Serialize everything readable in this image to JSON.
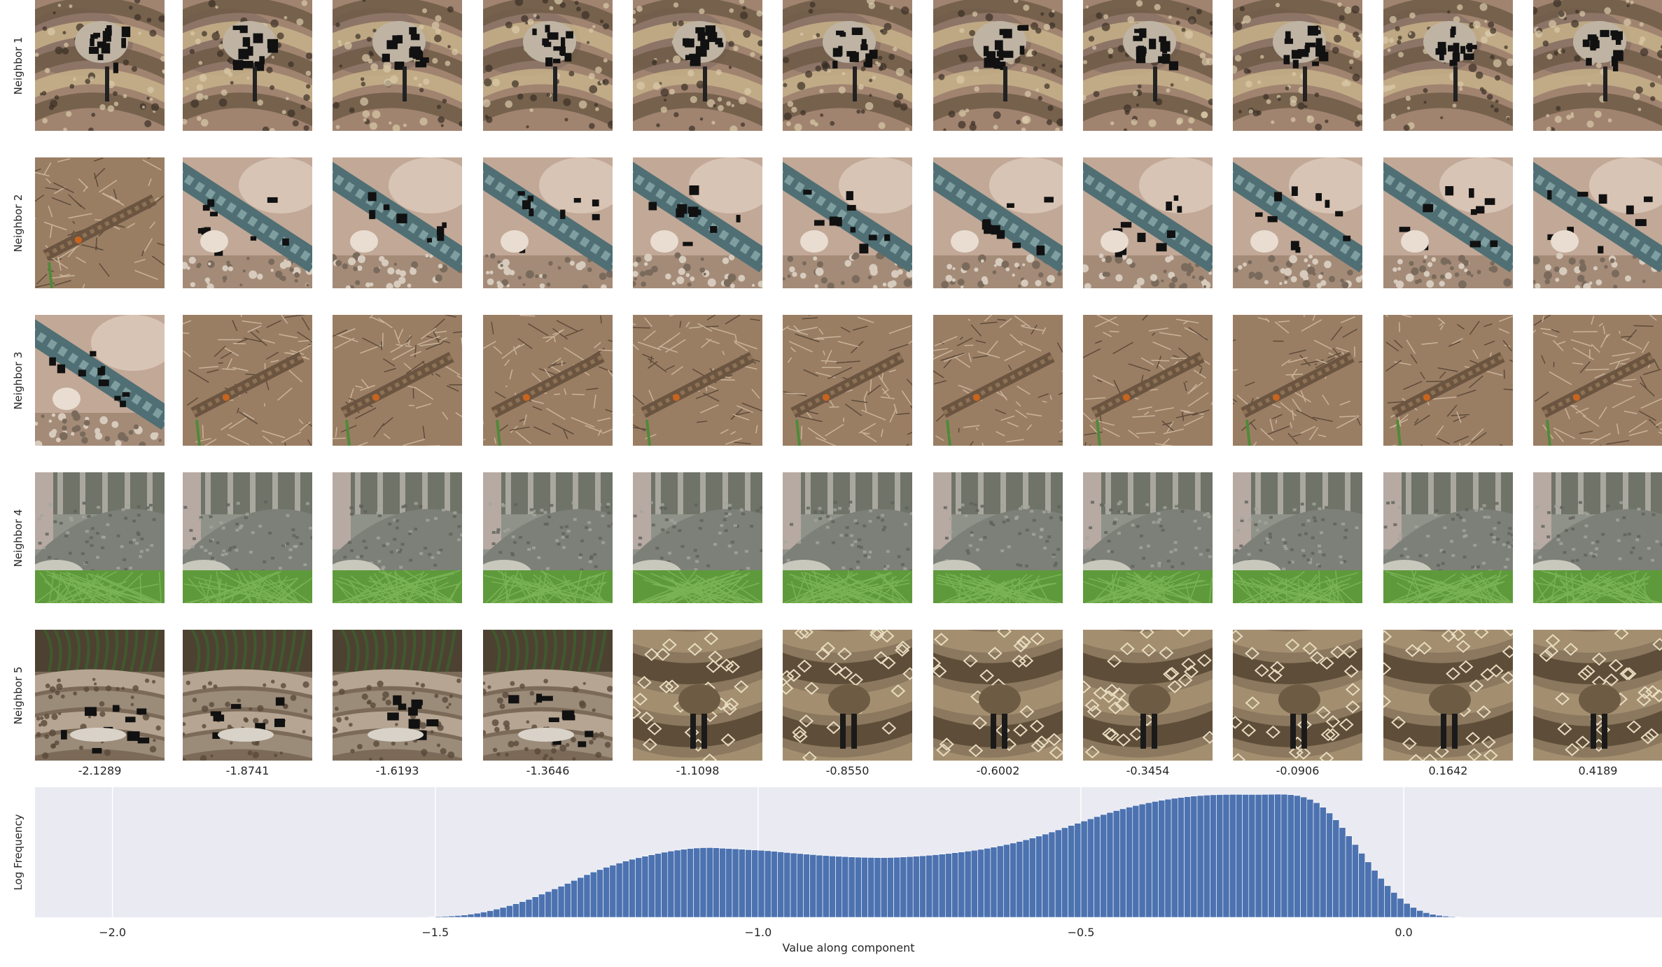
{
  "row_labels": [
    "Neighbor 1",
    "Neighbor 2",
    "Neighbor 3",
    "Neighbor 4",
    "Neighbor 5"
  ],
  "tile_themes": [
    [
      "snake-coil",
      "snake-coil",
      "snake-coil",
      "snake-coil",
      "snake-coil",
      "snake-coil",
      "snake-coil",
      "snake-coil",
      "snake-coil",
      "snake-coil",
      "snake-coil"
    ],
    [
      "lizard-grass",
      "lizard-blue",
      "lizard-blue",
      "lizard-blue",
      "lizard-blue",
      "lizard-blue",
      "lizard-blue",
      "lizard-blue",
      "lizard-blue",
      "lizard-blue",
      "lizard-blue"
    ],
    [
      "lizard-blue",
      "lizard-grass",
      "lizard-grass",
      "lizard-grass",
      "lizard-grass",
      "lizard-grass",
      "lizard-grass",
      "lizard-grass",
      "lizard-grass",
      "lizard-grass",
      "lizard-grass"
    ],
    [
      "croc",
      "croc",
      "croc",
      "croc",
      "croc",
      "croc",
      "croc",
      "croc",
      "croc",
      "croc",
      "croc"
    ],
    [
      "snake-plant",
      "snake-plant",
      "snake-plant",
      "snake-plant",
      "rattlesnake",
      "rattlesnake",
      "rattlesnake",
      "rattlesnake",
      "rattlesnake",
      "rattlesnake",
      "rattlesnake"
    ]
  ],
  "chart_data": {
    "type": "bar",
    "column_values": [
      "-2.1289",
      "-1.8741",
      "-1.6193",
      "-1.3646",
      "-1.1098",
      "-0.8550",
      "-0.6002",
      "-0.3454",
      "-0.0906",
      "0.1642",
      "0.4189"
    ],
    "title": "",
    "xlabel": "Value along component",
    "ylabel": "Log Frequency",
    "xlim": [
      -2.12,
      0.4
    ],
    "x_ticks": [
      -2.0,
      -1.5,
      -1.0,
      -0.5,
      0.0
    ],
    "x_tick_labels": [
      "−2.0",
      "−1.5",
      "−1.0",
      "−0.5",
      "0.0"
    ],
    "grid": true,
    "bar_color": "#4c72b0",
    "background_color": "#eaeaf2",
    "bin_width": 0.01,
    "histogram": [
      [
        -1.505,
        0.4
      ],
      [
        -1.495,
        0.8
      ],
      [
        -1.485,
        1.0
      ],
      [
        -1.475,
        1.3
      ],
      [
        -1.465,
        1.7
      ],
      [
        -1.455,
        2.2
      ],
      [
        -1.445,
        3.0
      ],
      [
        -1.435,
        3.9
      ],
      [
        -1.425,
        5.0
      ],
      [
        -1.415,
        6.3
      ],
      [
        -1.405,
        7.8
      ],
      [
        -1.395,
        9.4
      ],
      [
        -1.385,
        11.1
      ],
      [
        -1.375,
        12.9
      ],
      [
        -1.365,
        14.9
      ],
      [
        -1.355,
        17.0
      ],
      [
        -1.345,
        19.5
      ],
      [
        -1.335,
        22.0
      ],
      [
        -1.325,
        24.5
      ],
      [
        -1.315,
        27.0
      ],
      [
        -1.305,
        29.5
      ],
      [
        -1.295,
        32.2
      ],
      [
        -1.285,
        35.0
      ],
      [
        -1.275,
        37.8
      ],
      [
        -1.265,
        40.5
      ],
      [
        -1.255,
        43.0
      ],
      [
        -1.245,
        45.3
      ],
      [
        -1.235,
        47.5
      ],
      [
        -1.225,
        49.5
      ],
      [
        -1.215,
        51.5
      ],
      [
        -1.205,
        53.4
      ],
      [
        -1.195,
        55.1
      ],
      [
        -1.185,
        56.6
      ],
      [
        -1.175,
        58.0
      ],
      [
        -1.165,
        59.3
      ],
      [
        -1.155,
        60.6
      ],
      [
        -1.145,
        61.8
      ],
      [
        -1.135,
        62.9
      ],
      [
        -1.125,
        63.8
      ],
      [
        -1.115,
        64.6
      ],
      [
        -1.105,
        65.3
      ],
      [
        -1.095,
        65.8
      ],
      [
        -1.085,
        66.1
      ],
      [
        -1.075,
        66.2
      ],
      [
        -1.065,
        66.0
      ],
      [
        -1.055,
        65.6
      ],
      [
        -1.045,
        65.3
      ],
      [
        -1.035,
        65.0
      ],
      [
        -1.025,
        64.6
      ],
      [
        -1.015,
        64.2
      ],
      [
        -1.005,
        63.9
      ],
      [
        -0.995,
        63.6
      ],
      [
        -0.985,
        63.2
      ],
      [
        -0.975,
        62.7
      ],
      [
        -0.965,
        62.1
      ],
      [
        -0.955,
        61.5
      ],
      [
        -0.945,
        61.0
      ],
      [
        -0.935,
        60.5
      ],
      [
        -0.925,
        60.0
      ],
      [
        -0.915,
        59.5
      ],
      [
        -0.905,
        59.0
      ],
      [
        -0.895,
        58.6
      ],
      [
        -0.885,
        58.2
      ],
      [
        -0.875,
        57.9
      ],
      [
        -0.865,
        57.6
      ],
      [
        -0.855,
        57.3
      ],
      [
        -0.845,
        57.1
      ],
      [
        -0.835,
        56.9
      ],
      [
        -0.825,
        56.8
      ],
      [
        -0.815,
        56.7
      ],
      [
        -0.805,
        56.7
      ],
      [
        -0.795,
        56.8
      ],
      [
        -0.785,
        57.0
      ],
      [
        -0.775,
        57.3
      ],
      [
        -0.765,
        57.6
      ],
      [
        -0.755,
        58.0
      ],
      [
        -0.745,
        58.4
      ],
      [
        -0.735,
        58.9
      ],
      [
        -0.725,
        59.4
      ],
      [
        -0.715,
        60.0
      ],
      [
        -0.705,
        60.6
      ],
      [
        -0.695,
        61.3
      ],
      [
        -0.685,
        62.0
      ],
      [
        -0.675,
        62.8
      ],
      [
        -0.665,
        63.6
      ],
      [
        -0.655,
        64.5
      ],
      [
        -0.645,
        65.5
      ],
      [
        -0.635,
        66.6
      ],
      [
        -0.625,
        67.8
      ],
      [
        -0.615,
        69.1
      ],
      [
        -0.605,
        70.5
      ],
      [
        -0.595,
        72.0
      ],
      [
        -0.585,
        73.6
      ],
      [
        -0.575,
        75.3
      ],
      [
        -0.565,
        77.1
      ],
      [
        -0.555,
        79.0
      ],
      [
        -0.545,
        81.0
      ],
      [
        -0.535,
        83.0
      ],
      [
        -0.525,
        85.1
      ],
      [
        -0.515,
        87.2
      ],
      [
        -0.505,
        89.3
      ],
      [
        -0.495,
        91.4
      ],
      [
        -0.485,
        93.5
      ],
      [
        -0.475,
        95.6
      ],
      [
        -0.465,
        97.6
      ],
      [
        -0.455,
        99.5
      ],
      [
        -0.445,
        101.3
      ],
      [
        -0.435,
        103.0
      ],
      [
        -0.425,
        104.6
      ],
      [
        -0.415,
        106.1
      ],
      [
        -0.405,
        107.5
      ],
      [
        -0.395,
        108.8
      ],
      [
        -0.385,
        110.0
      ],
      [
        -0.375,
        111.1
      ],
      [
        -0.365,
        112.1
      ],
      [
        -0.355,
        113.0
      ],
      [
        -0.345,
        113.8
      ],
      [
        -0.335,
        114.5
      ],
      [
        -0.325,
        115.1
      ],
      [
        -0.315,
        115.6
      ],
      [
        -0.305,
        116.0
      ],
      [
        -0.295,
        116.3
      ],
      [
        -0.285,
        116.5
      ],
      [
        -0.275,
        116.6
      ],
      [
        -0.265,
        116.7
      ],
      [
        -0.255,
        116.7
      ],
      [
        -0.245,
        116.6
      ],
      [
        -0.235,
        116.6
      ],
      [
        -0.225,
        116.6
      ],
      [
        -0.215,
        116.7
      ],
      [
        -0.205,
        116.8
      ],
      [
        -0.195,
        116.9
      ],
      [
        -0.185,
        116.8
      ],
      [
        -0.175,
        116.4
      ],
      [
        -0.165,
        115.6
      ],
      [
        -0.155,
        114.2
      ],
      [
        -0.145,
        112.0
      ],
      [
        -0.135,
        108.8
      ],
      [
        -0.125,
        104.5
      ],
      [
        -0.115,
        99.0
      ],
      [
        -0.105,
        92.5
      ],
      [
        -0.095,
        85.2
      ],
      [
        -0.085,
        77.3
      ],
      [
        -0.075,
        69.1
      ],
      [
        -0.065,
        60.8
      ],
      [
        -0.055,
        52.6
      ],
      [
        -0.045,
        44.6
      ],
      [
        -0.035,
        37.0
      ],
      [
        -0.025,
        30.0
      ],
      [
        -0.015,
        23.6
      ],
      [
        -0.005,
        18.0
      ],
      [
        0.005,
        13.2
      ],
      [
        0.015,
        9.4
      ],
      [
        0.025,
        6.5
      ],
      [
        0.035,
        4.4
      ],
      [
        0.045,
        2.9
      ],
      [
        0.055,
        1.9
      ],
      [
        0.065,
        1.2
      ],
      [
        0.075,
        0.7
      ],
      [
        0.085,
        0.4
      ]
    ]
  }
}
